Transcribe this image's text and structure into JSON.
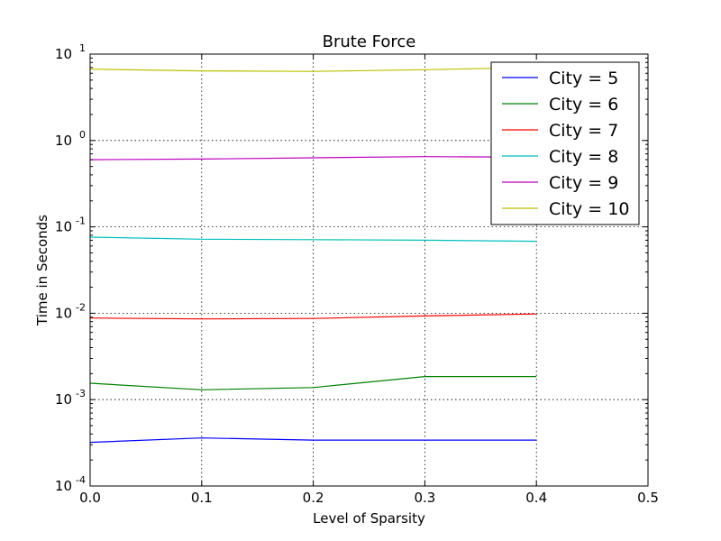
{
  "chart_data": {
    "type": "line",
    "title": "Brute Force",
    "xlabel": "Level of Sparsity",
    "ylabel": "Time in Seconds",
    "xlim": [
      0.0,
      0.5
    ],
    "ylim": [
      0.0001,
      10
    ],
    "yscale": "log",
    "grid": true,
    "legend_position": "top-right",
    "x_ticks": [
      "0.0",
      "0.1",
      "0.2",
      "0.3",
      "0.4",
      "0.5"
    ],
    "y_ticks": [
      {
        "base": "10",
        "exp": "-4"
      },
      {
        "base": "10",
        "exp": "-3"
      },
      {
        "base": "10",
        "exp": "-2"
      },
      {
        "base": "10",
        "exp": "-1"
      },
      {
        "base": "10",
        "exp": "0"
      },
      {
        "base": "10",
        "exp": "1"
      }
    ],
    "x": [
      0.0,
      0.1,
      0.2,
      0.3,
      0.4
    ],
    "series": [
      {
        "name": "City = 5",
        "color": "#0000ff",
        "values": [
          0.00032,
          0.00036,
          0.00034,
          0.00034,
          0.00034
        ]
      },
      {
        "name": "City = 6",
        "color": "#008000",
        "values": [
          0.00155,
          0.0013,
          0.00138,
          0.00185,
          0.00185
        ]
      },
      {
        "name": "City = 7",
        "color": "#ff0000",
        "values": [
          0.0088,
          0.0086,
          0.0087,
          0.0093,
          0.0098
        ]
      },
      {
        "name": "City = 8",
        "color": "#00bfbf",
        "values": [
          0.076,
          0.072,
          0.071,
          0.07,
          0.068
        ]
      },
      {
        "name": "City = 9",
        "color": "#bf00bf",
        "values": [
          0.6,
          0.61,
          0.63,
          0.65,
          0.64
        ]
      },
      {
        "name": "City = 10",
        "color": "#bfbf00",
        "values": [
          6.7,
          6.4,
          6.3,
          6.6,
          7.0
        ]
      }
    ]
  }
}
